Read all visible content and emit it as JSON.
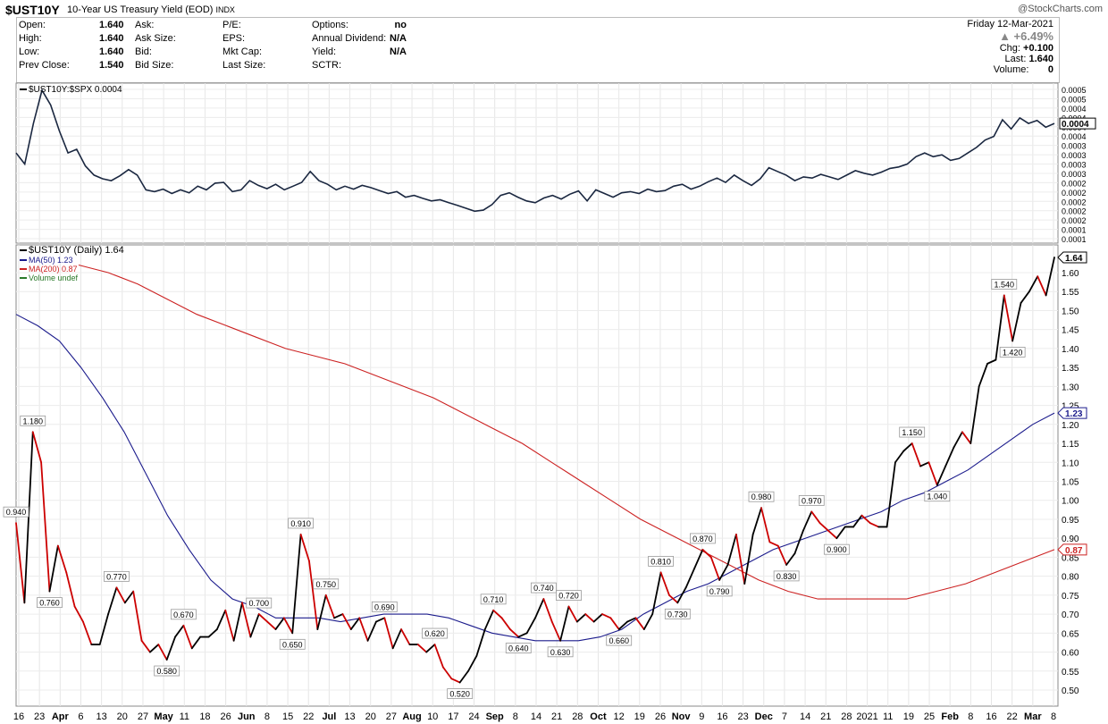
{
  "header": {
    "symbol": "$UST10Y",
    "description": "10-Year US Treasury Yield (EOD)",
    "exchange": "INDX",
    "watermark": "@StockCharts.com"
  },
  "info_panel": {
    "col1": [
      {
        "label": "Open:",
        "value": "1.640"
      },
      {
        "label": "High:",
        "value": "1.640"
      },
      {
        "label": "Low:",
        "value": "1.640"
      },
      {
        "label": "Prev Close:",
        "value": "1.540"
      }
    ],
    "col2": [
      {
        "label": "Ask:",
        "value": ""
      },
      {
        "label": "Ask Size:",
        "value": ""
      },
      {
        "label": "Bid:",
        "value": ""
      },
      {
        "label": "Bid Size:",
        "value": ""
      }
    ],
    "col3": [
      {
        "label": "P/E:",
        "value": ""
      },
      {
        "label": "EPS:",
        "value": ""
      },
      {
        "label": "Mkt Cap:",
        "value": ""
      },
      {
        "label": "Last Size:",
        "value": ""
      }
    ],
    "col4": [
      {
        "label": "Options:",
        "value": "no"
      },
      {
        "label": "Annual Dividend:",
        "value": "N/A"
      },
      {
        "label": "Yield:",
        "value": "N/A"
      },
      {
        "label": "SCTR:",
        "value": ""
      }
    ],
    "date": "Friday  12-Mar-2021",
    "pct_change": "▲ +6.49%",
    "chg_label": "Chg:",
    "chg_value": "+0.100",
    "last_label": "Last:",
    "last_value": "1.640",
    "volume_label": "Volume:",
    "volume_value": "0"
  },
  "chart_data": [
    {
      "type": "line",
      "legend": "$UST10Y:$SPX 0.0004",
      "ylim": [
        0.0001,
        0.0005
      ],
      "yticks": [
        "0.0005",
        "0.0005",
        "0.0004",
        "0.0004",
        "0.0004",
        "0.0004",
        "0.0003",
        "0.0003",
        "0.0003",
        "0.0003",
        "0.0002",
        "0.0002",
        "0.0002",
        "0.0002",
        "0.0002",
        "0.0001",
        "0.0001"
      ],
      "last_label": "0.0004",
      "series": [
        {
          "name": "$UST10Y:$SPX",
          "color": "#1a2740",
          "values": [
            0.00033,
            0.0003,
            0.00041,
            0.0005,
            0.00046,
            0.00039,
            0.00033,
            0.00034,
            0.000295,
            0.00027,
            0.00026,
            0.000255,
            0.000268,
            0.000285,
            0.00027,
            0.00023,
            0.000225,
            0.000232,
            0.00022,
            0.00023,
            0.000222,
            0.00024,
            0.00023,
            0.000248,
            0.00025,
            0.000225,
            0.00023,
            0.000255,
            0.000242,
            0.000233,
            0.000245,
            0.00023,
            0.00024,
            0.00025,
            0.00028,
            0.000255,
            0.000245,
            0.00023,
            0.00024,
            0.000232,
            0.000242,
            0.000236,
            0.000228,
            0.00022,
            0.000225,
            0.00021,
            0.000215,
            0.000207,
            0.0002,
            0.000203,
            0.000195,
            0.000188,
            0.00018,
            0.000172,
            0.000175,
            0.00019,
            0.000215,
            0.000222,
            0.00021,
            0.0002,
            0.000195,
            0.000208,
            0.000215,
            0.000205,
            0.000218,
            0.000227,
            0.0002,
            0.00023,
            0.00022,
            0.00021,
            0.000222,
            0.000225,
            0.00022,
            0.000232,
            0.000225,
            0.000228,
            0.00024,
            0.000245,
            0.000232,
            0.00024,
            0.000252,
            0.000262,
            0.00025,
            0.00027,
            0.000255,
            0.000242,
            0.00026,
            0.00029,
            0.00028,
            0.00027,
            0.000255,
            0.000265,
            0.000262,
            0.000272,
            0.000265,
            0.000258,
            0.00027,
            0.000282,
            0.000275,
            0.00027,
            0.000278,
            0.000288,
            0.000292,
            0.0003,
            0.00032,
            0.00033,
            0.00032,
            0.000325,
            0.00031,
            0.000315,
            0.00033,
            0.000345,
            0.000365,
            0.000375,
            0.00042,
            0.000395,
            0.000425,
            0.00041,
            0.000418,
            0.0004,
            0.00041
          ]
        }
      ]
    },
    {
      "type": "line",
      "legend": "$UST10Y (Daily) 1.64",
      "ylim": [
        0.5,
        1.64
      ],
      "yticks": [
        "1.60",
        "1.55",
        "1.50",
        "1.45",
        "1.40",
        "1.35",
        "1.30",
        "1.25",
        "1.20",
        "1.15",
        "1.10",
        "1.05",
        "1.00",
        "0.95",
        "0.90",
        "0.85",
        "0.80",
        "0.75",
        "0.70",
        "0.65",
        "0.60",
        "0.55",
        "0.50"
      ],
      "xticks": [
        "16",
        "23",
        "Apr",
        "6",
        "13",
        "20",
        "27",
        "May",
        "11",
        "18",
        "26",
        "Jun",
        "8",
        "15",
        "22",
        "Jul",
        "13",
        "20",
        "27",
        "Aug",
        "10",
        "17",
        "24",
        "Sep",
        "8",
        "14",
        "21",
        "28",
        "Oct",
        "12",
        "19",
        "26",
        "Nov",
        "9",
        "16",
        "23",
        "Dec",
        "7",
        "14",
        "21",
        "28",
        "2021",
        "11",
        "19",
        "25",
        "Feb",
        "8",
        "16",
        "22",
        "Mar",
        "8"
      ],
      "series": [
        {
          "name": "$UST10Y",
          "legend": "",
          "color_up": "#000000",
          "color_down": "#cc0000",
          "values": [
            0.94,
            0.73,
            1.18,
            1.1,
            0.76,
            0.88,
            0.81,
            0.72,
            0.68,
            0.62,
            0.62,
            0.7,
            0.77,
            0.73,
            0.76,
            0.63,
            0.6,
            0.62,
            0.58,
            0.64,
            0.67,
            0.61,
            0.64,
            0.64,
            0.66,
            0.71,
            0.63,
            0.73,
            0.64,
            0.7,
            0.68,
            0.66,
            0.69,
            0.65,
            0.91,
            0.84,
            0.66,
            0.75,
            0.69,
            0.7,
            0.66,
            0.69,
            0.63,
            0.68,
            0.69,
            0.61,
            0.66,
            0.62,
            0.62,
            0.6,
            0.62,
            0.56,
            0.53,
            0.52,
            0.55,
            0.59,
            0.66,
            0.71,
            0.69,
            0.66,
            0.64,
            0.65,
            0.69,
            0.74,
            0.68,
            0.63,
            0.72,
            0.68,
            0.7,
            0.68,
            0.7,
            0.69,
            0.66,
            0.68,
            0.69,
            0.66,
            0.7,
            0.81,
            0.75,
            0.73,
            0.77,
            0.82,
            0.87,
            0.85,
            0.79,
            0.83,
            0.91,
            0.78,
            0.91,
            0.98,
            0.89,
            0.88,
            0.83,
            0.86,
            0.92,
            0.97,
            0.94,
            0.92,
            0.9,
            0.93,
            0.93,
            0.96,
            0.94,
            0.93,
            0.93,
            1.1,
            1.13,
            1.15,
            1.09,
            1.1,
            1.04,
            1.09,
            1.14,
            1.18,
            1.15,
            1.3,
            1.36,
            1.37,
            1.54,
            1.42,
            1.52,
            1.55,
            1.59,
            1.54,
            1.64
          ]
        },
        {
          "name": "MA(50)",
          "legend": "1.23",
          "color": "#1b1b8c",
          "values": [
            1.49,
            1.46,
            1.42,
            1.35,
            1.27,
            1.18,
            1.07,
            0.96,
            0.87,
            0.79,
            0.74,
            0.72,
            0.69,
            0.69,
            0.69,
            0.68,
            0.69,
            0.7,
            0.7,
            0.7,
            0.69,
            0.67,
            0.65,
            0.64,
            0.63,
            0.63,
            0.63,
            0.64,
            0.66,
            0.7,
            0.73,
            0.76,
            0.78,
            0.81,
            0.84,
            0.87,
            0.89,
            0.91,
            0.93,
            0.95,
            0.97,
            1.0,
            1.02,
            1.05,
            1.08,
            1.12,
            1.16,
            1.2,
            1.23
          ]
        },
        {
          "name": "MA(200)",
          "legend": "0.87",
          "color": "#cc2222",
          "values": [
            1.62,
            1.6,
            1.57,
            1.53,
            1.49,
            1.46,
            1.43,
            1.4,
            1.38,
            1.36,
            1.33,
            1.3,
            1.27,
            1.23,
            1.19,
            1.15,
            1.1,
            1.05,
            1.0,
            0.95,
            0.91,
            0.87,
            0.83,
            0.79,
            0.76,
            0.74,
            0.74,
            0.74,
            0.74,
            0.76,
            0.78,
            0.81,
            0.84,
            0.87
          ]
        },
        {
          "name": "Volume",
          "legend": "undef",
          "color": "#2a7a2a",
          "values": []
        }
      ],
      "annotations": [
        {
          "text": "0.940",
          "index": 0
        },
        {
          "text": "1.180",
          "index": 2
        },
        {
          "text": "0.760",
          "index": 4
        },
        {
          "text": "0.770",
          "index": 12
        },
        {
          "text": "0.580",
          "index": 18
        },
        {
          "text": "0.670",
          "index": 20
        },
        {
          "text": "0.700",
          "index": 29
        },
        {
          "text": "0.650",
          "index": 33
        },
        {
          "text": "0.910",
          "index": 34
        },
        {
          "text": "0.750",
          "index": 37
        },
        {
          "text": "0.690",
          "index": 44
        },
        {
          "text": "0.620",
          "index": 50
        },
        {
          "text": "0.520",
          "index": 53
        },
        {
          "text": "0.710",
          "index": 57
        },
        {
          "text": "0.640",
          "index": 60
        },
        {
          "text": "0.740",
          "index": 63
        },
        {
          "text": "0.630",
          "index": 65
        },
        {
          "text": "0.720",
          "index": 66
        },
        {
          "text": "0.660",
          "index": 72
        },
        {
          "text": "0.810",
          "index": 77
        },
        {
          "text": "0.730",
          "index": 79
        },
        {
          "text": "0.870",
          "index": 82
        },
        {
          "text": "0.790",
          "index": 84
        },
        {
          "text": "0.980",
          "index": 89
        },
        {
          "text": "0.830",
          "index": 92
        },
        {
          "text": "0.970",
          "index": 95
        },
        {
          "text": "0.900",
          "index": 98
        },
        {
          "text": "1.150",
          "index": 107
        },
        {
          "text": "1.040",
          "index": 110
        },
        {
          "text": "1.540",
          "index": 118
        },
        {
          "text": "1.420",
          "index": 119
        }
      ],
      "last_labels": [
        {
          "text": "1.64",
          "value": 1.64,
          "color": "#000"
        },
        {
          "text": "1.23",
          "value": 1.23,
          "color": "#1b1b8c"
        },
        {
          "text": "0.87",
          "value": 0.87,
          "color": "#cc2222"
        }
      ]
    }
  ]
}
